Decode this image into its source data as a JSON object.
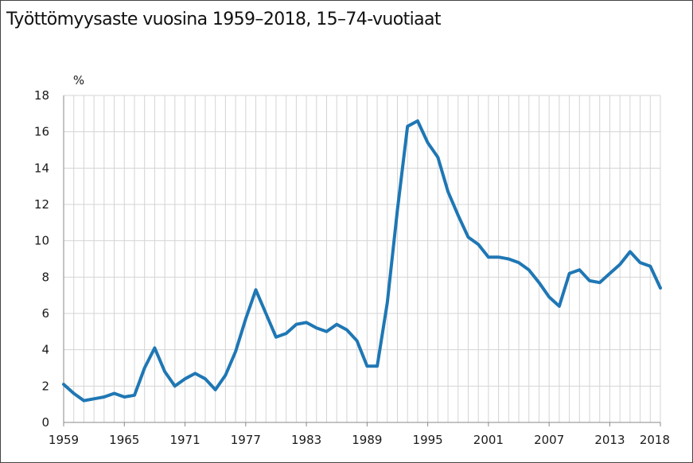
{
  "chart_data": {
    "type": "line",
    "title": "Työttömyysaste vuosina 1959–2018, 15–74-vuotiaat",
    "ylabel": "%",
    "xlabel": "",
    "ylim": [
      0,
      18
    ],
    "xlim": [
      1959,
      2018
    ],
    "yticks": [
      0,
      2,
      4,
      6,
      8,
      10,
      12,
      14,
      16,
      18
    ],
    "xticks": [
      1959,
      1965,
      1971,
      1977,
      1983,
      1989,
      1995,
      2001,
      2007,
      2013,
      2018
    ],
    "grid": true,
    "colors": {
      "line": "#1f77b4",
      "grid": "#d4d4d4",
      "axis": "#888888"
    },
    "series": [
      {
        "x": [
          1959,
          1960,
          1961,
          1962,
          1963,
          1964,
          1965,
          1966,
          1967,
          1968,
          1969,
          1970,
          1971,
          1972,
          1973,
          1974,
          1975,
          1976,
          1977,
          1978,
          1979,
          1980,
          1981,
          1982,
          1983,
          1984,
          1985,
          1986,
          1987,
          1988,
          1989,
          1990,
          1991,
          1992,
          1993,
          1994,
          1995,
          1996,
          1997,
          1998,
          1999,
          2000,
          2001,
          2002,
          2003,
          2004,
          2005,
          2006,
          2007,
          2008,
          2009,
          2010,
          2011,
          2012,
          2013,
          2014,
          2015,
          2016,
          2017,
          2018
        ],
        "values": [
          2.1,
          1.6,
          1.2,
          1.3,
          1.4,
          1.6,
          1.4,
          1.5,
          3.0,
          4.1,
          2.8,
          2.0,
          2.4,
          2.7,
          2.4,
          1.8,
          2.6,
          3.9,
          5.7,
          7.3,
          6.0,
          4.7,
          4.9,
          5.4,
          5.5,
          5.2,
          5.0,
          5.4,
          5.1,
          4.5,
          3.1,
          3.1,
          6.6,
          11.7,
          16.3,
          16.6,
          15.4,
          14.6,
          12.7,
          11.4,
          10.2,
          9.8,
          9.1,
          9.1,
          9.0,
          8.8,
          8.4,
          7.7,
          6.9,
          6.4,
          8.2,
          8.4,
          7.8,
          7.7,
          8.2,
          8.7,
          9.4,
          8.8,
          8.6,
          7.4
        ]
      }
    ]
  }
}
